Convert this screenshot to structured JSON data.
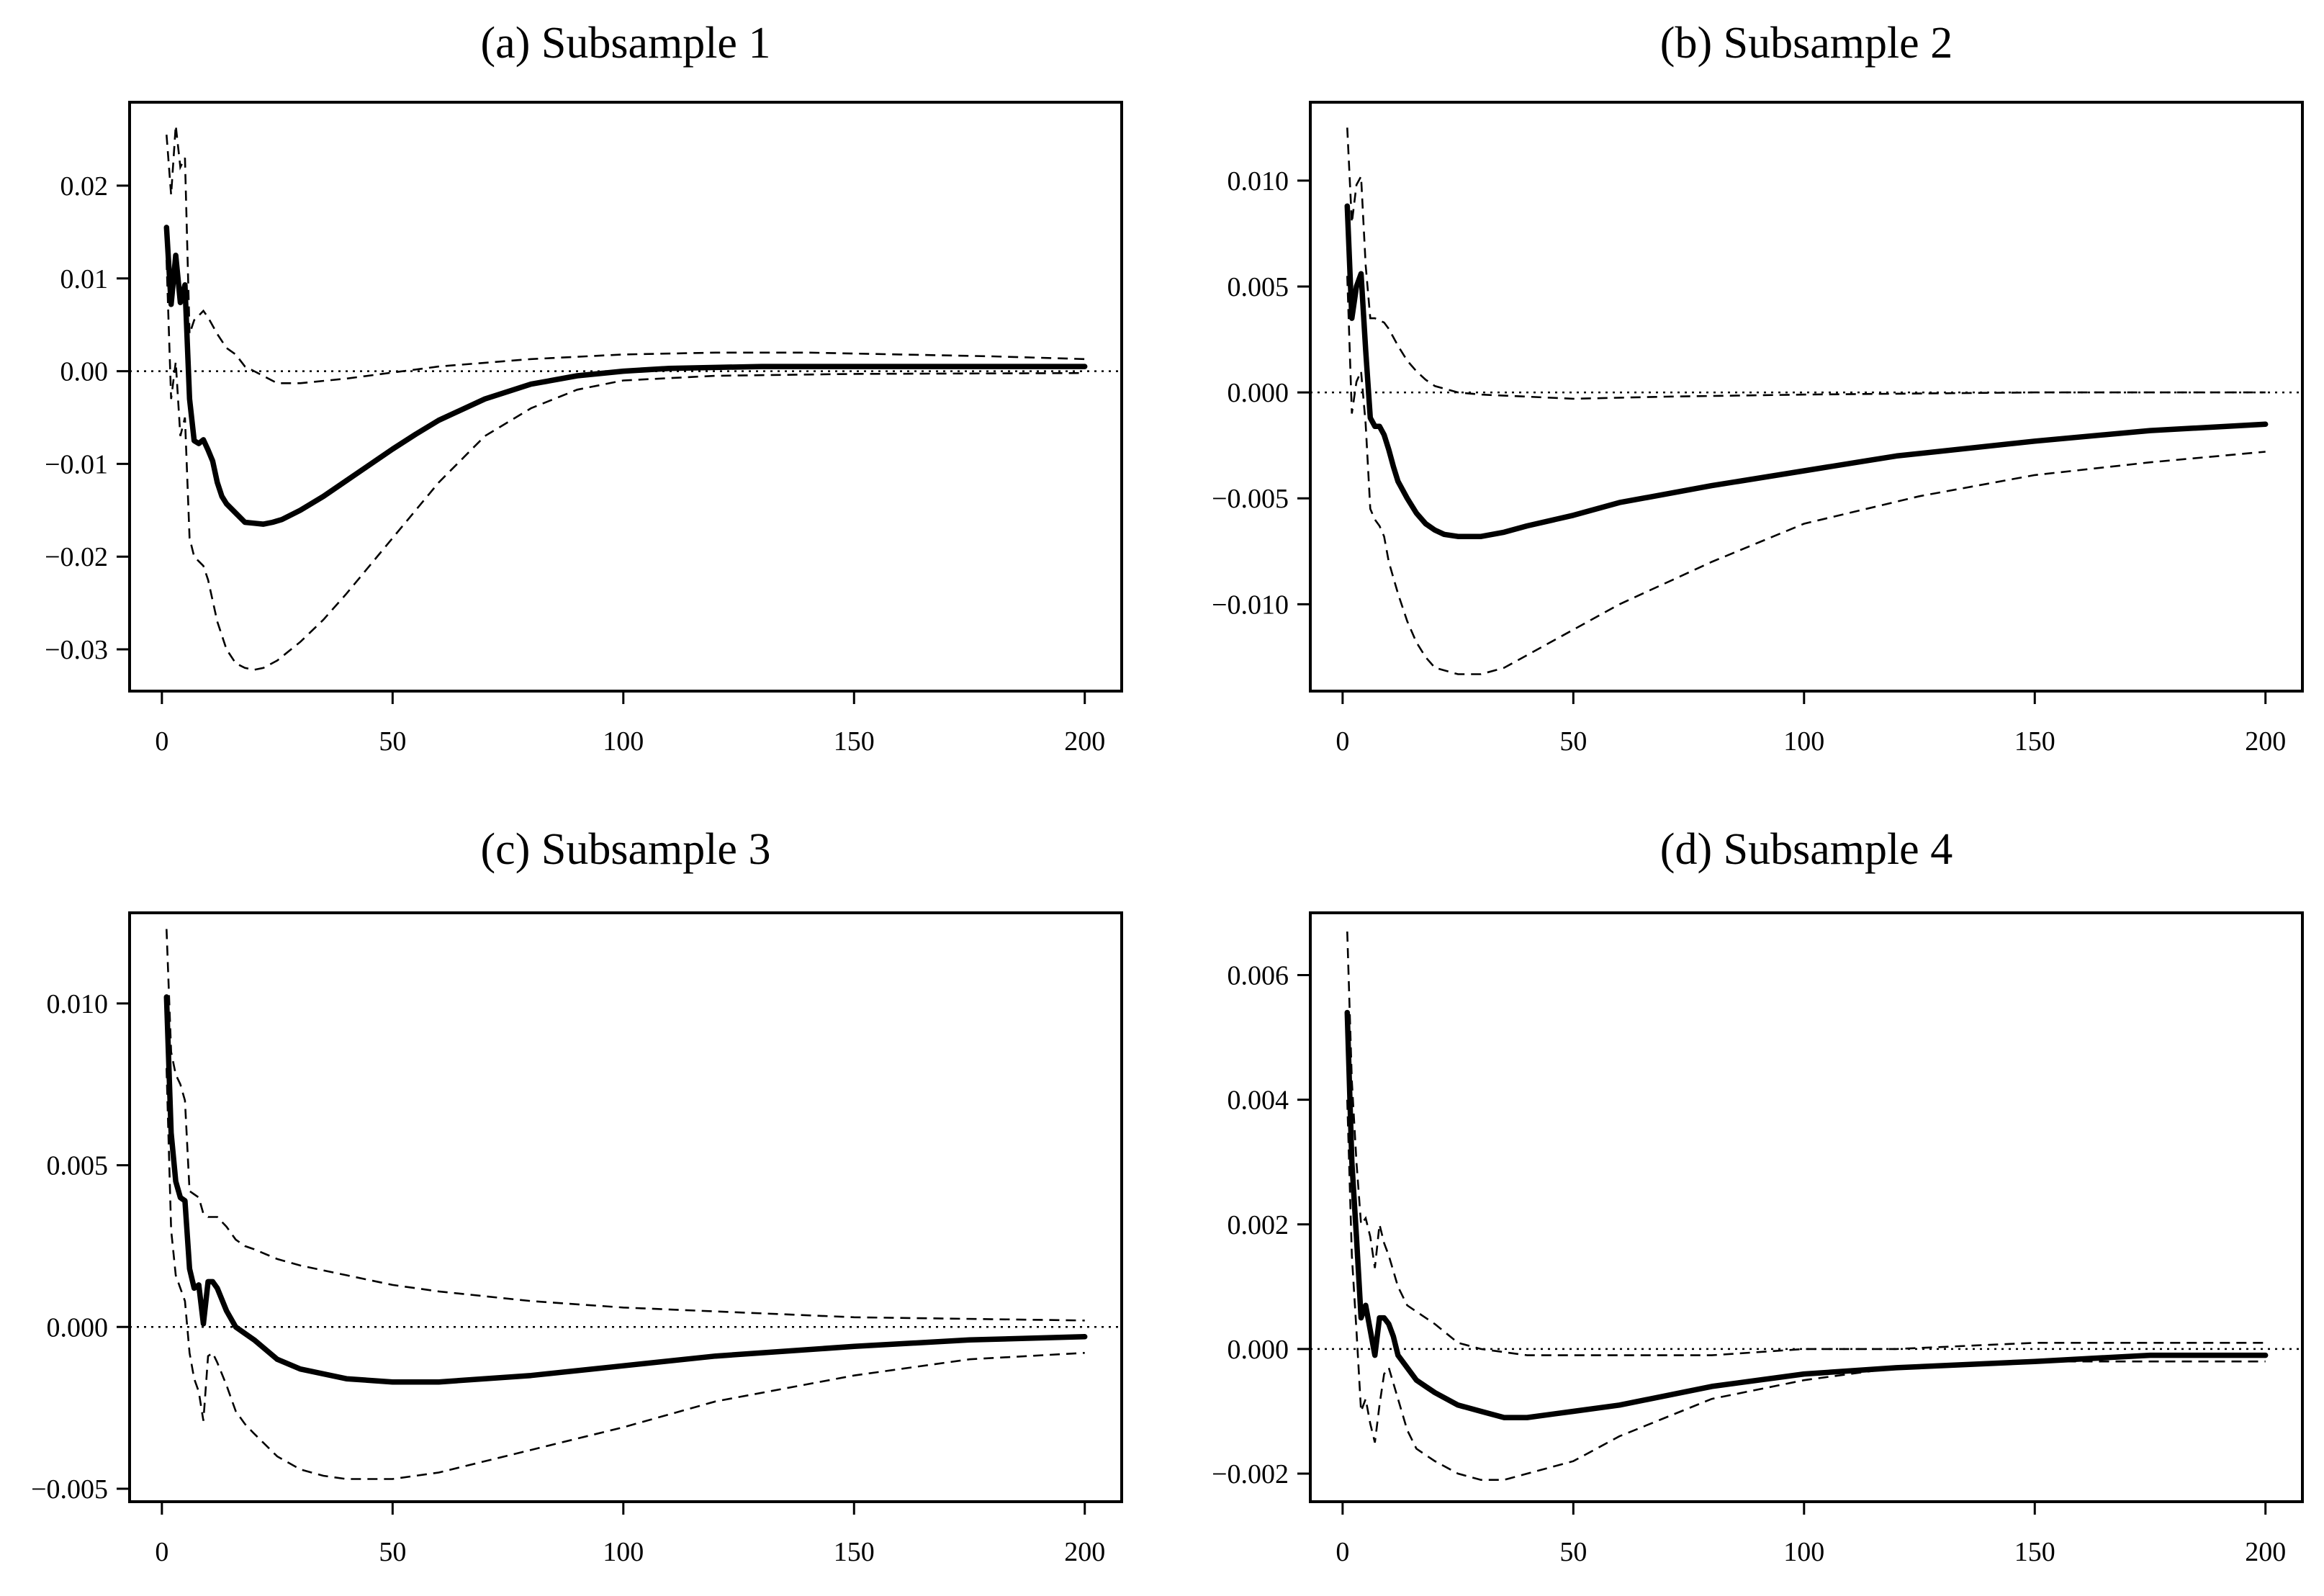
{
  "chart_data": [
    {
      "type": "line",
      "title": "(a) Subsample 1",
      "xlim": [
        -7,
        208
      ],
      "ylim": [
        -0.0345,
        0.029
      ],
      "xticks": [
        0,
        50,
        100,
        150,
        200
      ],
      "xtick_labels": [
        "0",
        "50",
        "100",
        "150",
        "200"
      ],
      "yticks": [
        0.02,
        0.01,
        0.0,
        -0.01,
        -0.02,
        -0.03
      ],
      "ytick_labels": [
        "0.02",
        "0.01",
        "0.00",
        "−0.01",
        "−0.02",
        "−0.03"
      ],
      "reference_line": 0,
      "series": [
        {
          "name": "impulse response",
          "style": "solid",
          "x": [
            1,
            2,
            3,
            4,
            5,
            6,
            7,
            8,
            9,
            10,
            11,
            12,
            13,
            14,
            16,
            18,
            20,
            22,
            24,
            26,
            30,
            35,
            40,
            45,
            50,
            55,
            60,
            70,
            80,
            90,
            100,
            110,
            120,
            130,
            150,
            170,
            200
          ],
          "values": [
            0.0155,
            0.0072,
            0.0125,
            0.0074,
            0.0093,
            -0.003,
            -0.0075,
            -0.0078,
            -0.0074,
            -0.0085,
            -0.0097,
            -0.012,
            -0.0135,
            -0.0143,
            -0.0153,
            -0.0163,
            -0.0164,
            -0.0165,
            -0.0163,
            -0.016,
            -0.015,
            -0.0135,
            -0.0118,
            -0.0101,
            -0.0084,
            -0.0068,
            -0.0053,
            -0.003,
            -0.0014,
            -0.0005,
            0.0,
            0.0003,
            0.0004,
            0.0005,
            0.0005,
            0.0005,
            0.0005
          ]
        },
        {
          "name": "upper band",
          "style": "dashed",
          "x": [
            1,
            2,
            3,
            4,
            5,
            6,
            7,
            8,
            9,
            10,
            12,
            14,
            16,
            18,
            20,
            25,
            30,
            40,
            60,
            80,
            100,
            120,
            140,
            160,
            180,
            200
          ],
          "values": [
            0.0255,
            0.019,
            0.0265,
            0.022,
            0.023,
            0.004,
            0.0055,
            0.006,
            0.0065,
            0.0058,
            0.004,
            0.0025,
            0.0018,
            0.0005,
            0.0,
            -0.0013,
            -0.0013,
            -0.0008,
            0.0005,
            0.0013,
            0.0018,
            0.002,
            0.002,
            0.0018,
            0.0016,
            0.0013
          ]
        },
        {
          "name": "lower band",
          "style": "dashed",
          "x": [
            1,
            2,
            3,
            4,
            5,
            6,
            7,
            8,
            9,
            10,
            12,
            14,
            16,
            18,
            20,
            22,
            25,
            30,
            35,
            40,
            50,
            60,
            70,
            80,
            90,
            100,
            120,
            150,
            200
          ],
          "values": [
            0.012,
            -0.003,
            0.001,
            -0.007,
            -0.005,
            -0.018,
            -0.02,
            -0.0205,
            -0.021,
            -0.0225,
            -0.027,
            -0.03,
            -0.0315,
            -0.032,
            -0.0322,
            -0.032,
            -0.0312,
            -0.0292,
            -0.0268,
            -0.024,
            -0.018,
            -0.012,
            -0.007,
            -0.004,
            -0.002,
            -0.001,
            -0.0005,
            -0.0003,
            -0.0002
          ]
        }
      ]
    },
    {
      "type": "line",
      "title": "(b) Subsample 2",
      "xlim": [
        -7,
        208
      ],
      "ylim": [
        -0.0141,
        0.0137
      ],
      "xticks": [
        0,
        50,
        100,
        150,
        200
      ],
      "xtick_labels": [
        "0",
        "50",
        "100",
        "150",
        "200"
      ],
      "yticks": [
        0.01,
        0.005,
        0.0,
        -0.005,
        -0.01
      ],
      "ytick_labels": [
        "0.010",
        "0.005",
        "0.000",
        "−0.005",
        "−0.010"
      ],
      "reference_line": 0,
      "series": [
        {
          "name": "impulse response",
          "style": "solid",
          "x": [
            1,
            2,
            3,
            4,
            5,
            6,
            7,
            8,
            9,
            10,
            11,
            12,
            14,
            16,
            18,
            20,
            22,
            25,
            28,
            30,
            35,
            40,
            50,
            60,
            80,
            100,
            120,
            150,
            175,
            200
          ],
          "values": [
            0.0088,
            0.0035,
            0.005,
            0.0056,
            0.002,
            -0.0012,
            -0.0016,
            -0.0016,
            -0.002,
            -0.0027,
            -0.0035,
            -0.0042,
            -0.005,
            -0.0057,
            -0.0062,
            -0.0065,
            -0.0067,
            -0.0068,
            -0.0068,
            -0.0068,
            -0.0066,
            -0.0063,
            -0.0058,
            -0.0052,
            -0.0044,
            -0.0037,
            -0.003,
            -0.0023,
            -0.0018,
            -0.0015
          ]
        },
        {
          "name": "upper band",
          "style": "dashed",
          "x": [
            1,
            2,
            3,
            4,
            5,
            6,
            7,
            8,
            9,
            10,
            12,
            14,
            16,
            18,
            20,
            25,
            30,
            40,
            50,
            70,
            100,
            150,
            200
          ],
          "values": [
            0.0125,
            0.008,
            0.0098,
            0.0102,
            0.006,
            0.0035,
            0.0035,
            0.0034,
            0.0033,
            0.003,
            0.0022,
            0.0015,
            0.001,
            0.0006,
            0.0003,
            0.0,
            -0.0001,
            -0.0002,
            -0.0003,
            -0.0002,
            -0.0001,
            0.0,
            0.0
          ]
        },
        {
          "name": "lower band",
          "style": "dashed",
          "x": [
            1,
            2,
            3,
            4,
            5,
            6,
            7,
            8,
            9,
            10,
            12,
            14,
            16,
            18,
            20,
            25,
            30,
            35,
            40,
            50,
            60,
            80,
            100,
            125,
            150,
            175,
            200
          ],
          "values": [
            0.0055,
            -0.001,
            0.0005,
            0.001,
            -0.0015,
            -0.0055,
            -0.006,
            -0.0063,
            -0.0068,
            -0.008,
            -0.0095,
            -0.0108,
            -0.0118,
            -0.0125,
            -0.013,
            -0.0133,
            -0.0133,
            -0.013,
            -0.0124,
            -0.0112,
            -0.01,
            -0.008,
            -0.0062,
            -0.0049,
            -0.0039,
            -0.0033,
            -0.0028
          ]
        }
      ]
    },
    {
      "type": "line",
      "title": "(c) Subsample 3",
      "xlim": [
        -7,
        208
      ],
      "ylim": [
        -0.0054,
        0.0128
      ],
      "xticks": [
        0,
        50,
        100,
        150,
        200
      ],
      "xtick_labels": [
        "0",
        "50",
        "100",
        "150",
        "200"
      ],
      "yticks": [
        0.01,
        0.005,
        0.0,
        -0.005
      ],
      "ytick_labels": [
        "0.010",
        "0.005",
        "0.000",
        "−0.005"
      ],
      "reference_line": 0,
      "series": [
        {
          "name": "impulse response",
          "style": "solid",
          "x": [
            1,
            2,
            3,
            4,
            5,
            6,
            7,
            8,
            9,
            10,
            11,
            12,
            14,
            16,
            18,
            20,
            25,
            30,
            40,
            50,
            55,
            60,
            80,
            100,
            120,
            150,
            175,
            200
          ],
          "values": [
            0.0102,
            0.006,
            0.0045,
            0.004,
            0.0039,
            0.0018,
            0.0012,
            0.0013,
            0.0001,
            0.0014,
            0.0014,
            0.0012,
            0.0005,
            0.0,
            -0.0002,
            -0.0004,
            -0.001,
            -0.0013,
            -0.0016,
            -0.0017,
            -0.0017,
            -0.0017,
            -0.0015,
            -0.0012,
            -0.0009,
            -0.0006,
            -0.0004,
            -0.0003
          ]
        },
        {
          "name": "upper band",
          "style": "dashed",
          "x": [
            1,
            2,
            3,
            4,
            5,
            6,
            7,
            8,
            9,
            10,
            12,
            14,
            16,
            18,
            20,
            25,
            30,
            40,
            50,
            60,
            80,
            100,
            150,
            200
          ],
          "values": [
            0.0123,
            0.0085,
            0.0078,
            0.0075,
            0.007,
            0.0042,
            0.0041,
            0.004,
            0.0035,
            0.0034,
            0.0034,
            0.0031,
            0.0027,
            0.0025,
            0.0024,
            0.0021,
            0.0019,
            0.0016,
            0.0013,
            0.0011,
            0.0008,
            0.0006,
            0.0003,
            0.0002
          ]
        },
        {
          "name": "lower band",
          "style": "dashed",
          "x": [
            1,
            2,
            3,
            4,
            5,
            6,
            7,
            8,
            9,
            10,
            11,
            12,
            14,
            16,
            18,
            20,
            25,
            30,
            35,
            40,
            50,
            60,
            80,
            100,
            120,
            150,
            175,
            200
          ],
          "values": [
            0.008,
            0.003,
            0.0016,
            0.0012,
            0.0008,
            -0.0008,
            -0.0016,
            -0.002,
            -0.0029,
            -0.0009,
            -0.0008,
            -0.0011,
            -0.0018,
            -0.0026,
            -0.003,
            -0.0033,
            -0.004,
            -0.0044,
            -0.0046,
            -0.0047,
            -0.0047,
            -0.0045,
            -0.0038,
            -0.0031,
            -0.0023,
            -0.0015,
            -0.001,
            -0.0008
          ]
        }
      ]
    },
    {
      "type": "line",
      "title": "(d) Subsample 4",
      "xlim": [
        -7,
        208
      ],
      "ylim": [
        -0.00245,
        0.007
      ],
      "xticks": [
        0,
        50,
        100,
        150,
        200
      ],
      "xtick_labels": [
        "0",
        "50",
        "100",
        "150",
        "200"
      ],
      "yticks": [
        0.006,
        0.004,
        0.002,
        0.0,
        -0.002
      ],
      "ytick_labels": [
        "0.006",
        "0.004",
        "0.002",
        "0.000",
        "−0.002"
      ],
      "reference_line": 0,
      "series": [
        {
          "name": "impulse response",
          "style": "solid",
          "x": [
            1,
            2,
            3,
            4,
            5,
            6,
            7,
            8,
            9,
            10,
            11,
            12,
            14,
            16,
            18,
            20,
            25,
            30,
            35,
            40,
            50,
            60,
            80,
            100,
            120,
            150,
            175,
            200
          ],
          "values": [
            0.0054,
            0.003,
            0.0018,
            0.0005,
            0.0007,
            0.0003,
            -0.0001,
            0.0005,
            0.0005,
            0.0004,
            0.0002,
            -0.0001,
            -0.0003,
            -0.0005,
            -0.0006,
            -0.0007,
            -0.0009,
            -0.001,
            -0.0011,
            -0.0011,
            -0.001,
            -0.0009,
            -0.0006,
            -0.0004,
            -0.0003,
            -0.0002,
            -0.0001,
            -0.0001
          ]
        },
        {
          "name": "upper band",
          "style": "dashed",
          "x": [
            1,
            2,
            3,
            4,
            5,
            6,
            7,
            8,
            9,
            10,
            12,
            14,
            16,
            18,
            20,
            25,
            30,
            40,
            60,
            80,
            100,
            120,
            150,
            200
          ],
          "values": [
            0.0067,
            0.0043,
            0.003,
            0.002,
            0.0021,
            0.0018,
            0.0013,
            0.002,
            0.0017,
            0.0015,
            0.001,
            0.0007,
            0.0006,
            0.0005,
            0.0004,
            0.0001,
            0.0,
            -0.0001,
            -0.0001,
            -0.0001,
            0.0,
            0.0,
            0.0001,
            0.0001
          ]
        },
        {
          "name": "lower band",
          "style": "dashed",
          "x": [
            1,
            2,
            3,
            4,
            5,
            6,
            7,
            8,
            9,
            10,
            12,
            14,
            16,
            18,
            20,
            25,
            30,
            35,
            40,
            50,
            60,
            80,
            100,
            120,
            150,
            175,
            200
          ],
          "values": [
            0.004,
            0.0015,
            0.0003,
            -0.001,
            -0.0008,
            -0.0012,
            -0.0015,
            -0.0009,
            -0.0004,
            -0.0003,
            -0.0008,
            -0.0013,
            -0.0016,
            -0.0017,
            -0.0018,
            -0.002,
            -0.0021,
            -0.0021,
            -0.002,
            -0.0018,
            -0.0014,
            -0.0008,
            -0.0005,
            -0.0003,
            -0.0002,
            -0.0002,
            -0.0002
          ]
        }
      ]
    }
  ]
}
